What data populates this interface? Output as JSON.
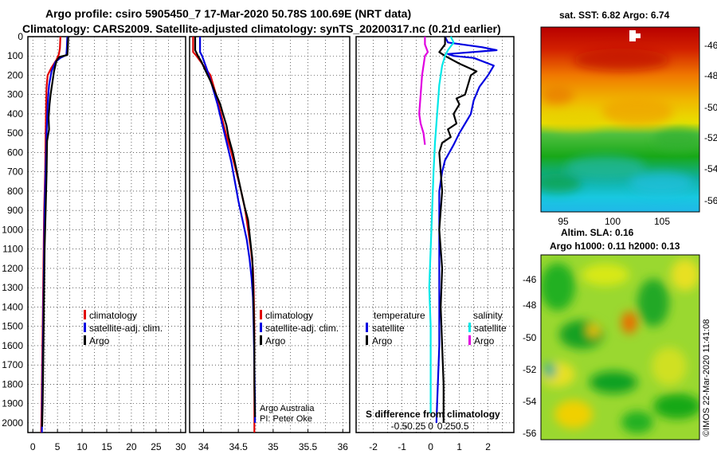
{
  "header": {
    "title_line1": "Argo profile: csiro 5905450_7 17-Mar-2020 50.78S 100.69E (NRT data)",
    "title_line2": "Climatology: CARS2009. Satellite-adjusted climatology: synTS_20200317.nc (0.21d earlier)"
  },
  "colors": {
    "climatology": "#e00000",
    "satellite_adj": "#0000e0",
    "argo": "#000000",
    "satellite_s": "#00e8e8",
    "argo_s": "#e000e0"
  },
  "chart_data": [
    {
      "type": "line",
      "name": "temperature-profile",
      "xlim": [
        -1,
        31
      ],
      "ylim": [
        2050,
        0
      ],
      "xticks": [
        "0",
        "5",
        "10",
        "15",
        "20",
        "25",
        "30"
      ],
      "yticks": [
        "0",
        "100",
        "200",
        "300",
        "400",
        "500",
        "600",
        "700",
        "800",
        "900",
        "1000",
        "1100",
        "1200",
        "1300",
        "1400",
        "1500",
        "1600",
        "1700",
        "1800",
        "1900",
        "2000"
      ],
      "legend": [
        "climatology",
        "satellite-adj. clim.",
        "Argo"
      ],
      "series": [
        {
          "name": "climatology",
          "color": "#e00000",
          "points": [
            [
              5.6,
              0
            ],
            [
              5.5,
              60
            ],
            [
              5.3,
              90
            ],
            [
              4.8,
              120
            ],
            [
              3.8,
              160
            ],
            [
              3.0,
              200
            ],
            [
              2.8,
              260
            ],
            [
              2.7,
              350
            ],
            [
              2.6,
              500
            ],
            [
              2.5,
              700
            ],
            [
              2.3,
              900
            ],
            [
              2.2,
              1100
            ],
            [
              2.1,
              1300
            ],
            [
              2.0,
              1500
            ],
            [
              1.9,
              1700
            ],
            [
              1.8,
              1900
            ],
            [
              1.7,
              2050
            ]
          ]
        },
        {
          "name": "satellite-adj. clim.",
          "color": "#0000e0",
          "points": [
            [
              7.0,
              0
            ],
            [
              6.9,
              60
            ],
            [
              6.8,
              95
            ],
            [
              5.6,
              110
            ],
            [
              4.6,
              130
            ],
            [
              3.8,
              180
            ],
            [
              3.3,
              250
            ],
            [
              3.0,
              350
            ],
            [
              2.8,
              500
            ],
            [
              2.6,
              700
            ],
            [
              2.4,
              900
            ],
            [
              2.3,
              1100
            ],
            [
              2.2,
              1300
            ],
            [
              2.1,
              1500
            ],
            [
              2.0,
              1700
            ],
            [
              1.9,
              1900
            ],
            [
              1.85,
              2050
            ]
          ]
        },
        {
          "name": "Argo",
          "color": "#000000",
          "points": [
            [
              7.2,
              0
            ],
            [
              7.1,
              60
            ],
            [
              7.0,
              95
            ],
            [
              5.4,
              105
            ],
            [
              4.8,
              125
            ],
            [
              4.3,
              180
            ],
            [
              3.9,
              250
            ],
            [
              3.6,
              300
            ],
            [
              3.4,
              350
            ],
            [
              3.2,
              420
            ],
            [
              3.3,
              480
            ],
            [
              2.9,
              540
            ],
            [
              2.8,
              700
            ],
            [
              2.6,
              900
            ],
            [
              2.4,
              1100
            ],
            [
              2.3,
              1300
            ],
            [
              2.2,
              1500
            ],
            [
              2.1,
              1700
            ],
            [
              2.0,
              1900
            ],
            [
              1.9,
              2020
            ]
          ]
        }
      ]
    },
    {
      "type": "line",
      "name": "salinity-profile",
      "xlim": [
        33.8,
        36.1
      ],
      "ylim": [
        2050,
        0
      ],
      "xticks": [
        "34",
        "34.5",
        "35",
        "35.5",
        "36"
      ],
      "legend": [
        "climatology",
        "satellite-adj. clim.",
        "Argo"
      ],
      "annotation": [
        "Argo Australia",
        "PI: Peter Oke"
      ],
      "series": [
        {
          "name": "climatology",
          "color": "#e00000",
          "points": [
            [
              33.85,
              0
            ],
            [
              33.85,
              80
            ],
            [
              33.9,
              100
            ],
            [
              34.0,
              150
            ],
            [
              34.1,
              200
            ],
            [
              34.18,
              300
            ],
            [
              34.25,
              400
            ],
            [
              34.32,
              500
            ],
            [
              34.4,
              600
            ],
            [
              34.47,
              700
            ],
            [
              34.54,
              800
            ],
            [
              34.6,
              900
            ],
            [
              34.64,
              1000
            ],
            [
              34.68,
              1100
            ],
            [
              34.71,
              1200
            ],
            [
              34.72,
              1300
            ],
            [
              34.73,
              1500
            ],
            [
              34.73,
              1800
            ],
            [
              34.73,
              2050
            ]
          ]
        },
        {
          "name": "satellite-adj. clim.",
          "color": "#0000e0",
          "points": [
            [
              33.95,
              0
            ],
            [
              33.95,
              80
            ],
            [
              33.98,
              100
            ],
            [
              34.05,
              170
            ],
            [
              34.12,
              250
            ],
            [
              34.2,
              350
            ],
            [
              34.28,
              470
            ],
            [
              34.34,
              560
            ],
            [
              34.4,
              650
            ],
            [
              34.45,
              750
            ],
            [
              34.5,
              850
            ],
            [
              34.56,
              950
            ],
            [
              34.62,
              1050
            ],
            [
              34.66,
              1150
            ],
            [
              34.69,
              1250
            ],
            [
              34.71,
              1350
            ],
            [
              34.72,
              1500
            ],
            [
              34.73,
              1700
            ],
            [
              34.74,
              1900
            ],
            [
              34.74,
              2000
            ]
          ]
        },
        {
          "name": "Argo",
          "color": "#000000",
          "points": [
            [
              33.88,
              0
            ],
            [
              33.88,
              70
            ],
            [
              33.92,
              100
            ],
            [
              33.97,
              130
            ],
            [
              34.02,
              170
            ],
            [
              34.1,
              230
            ],
            [
              34.18,
              300
            ],
            [
              34.24,
              350
            ],
            [
              34.28,
              400
            ],
            [
              34.33,
              460
            ],
            [
              34.36,
              520
            ],
            [
              34.42,
              600
            ],
            [
              34.48,
              700
            ],
            [
              34.54,
              800
            ],
            [
              34.59,
              880
            ],
            [
              34.64,
              950
            ],
            [
              34.67,
              1050
            ],
            [
              34.7,
              1150
            ],
            [
              34.71,
              1250
            ],
            [
              34.72,
              1400
            ],
            [
              34.73,
              1600
            ],
            [
              34.73,
              1800
            ],
            [
              34.74,
              1970
            ]
          ]
        }
      ]
    },
    {
      "type": "line",
      "name": "difference-from-climatology",
      "xlim": [
        -2.6,
        2.9
      ],
      "ylim": [
        2050,
        0
      ],
      "xticks_temperature": [
        "-2",
        "-1",
        "0",
        "1",
        "2"
      ],
      "xticks_salinity": [
        "-0.5",
        "-0.25",
        "0",
        "0.25",
        "0.5"
      ],
      "xlabel": "S difference from climatology",
      "legend_temperature": [
        "temperature",
        "satellite",
        "Argo"
      ],
      "legend_salinity": [
        "salinity",
        "satellite",
        "Argo"
      ],
      "series": [
        {
          "name": "temperature satellite",
          "color": "#0000e0",
          "points": [
            [
              0.5,
              0
            ],
            [
              0.6,
              30
            ],
            [
              1.8,
              55
            ],
            [
              2.3,
              70
            ],
            [
              0.6,
              90
            ],
            [
              0.8,
              100
            ],
            [
              1.5,
              110
            ],
            [
              2.2,
              150
            ],
            [
              2.0,
              200
            ],
            [
              1.7,
              260
            ],
            [
              1.5,
              330
            ],
            [
              1.4,
              400
            ],
            [
              1.0,
              500
            ],
            [
              0.8,
              560
            ],
            [
              0.5,
              640
            ],
            [
              0.4,
              700
            ],
            [
              0.3,
              800
            ],
            [
              0.3,
              1000
            ],
            [
              0.3,
              1200
            ],
            [
              0.3,
              1400
            ],
            [
              0.3,
              1600
            ],
            [
              0.25,
              1800
            ],
            [
              0.2,
              2000
            ]
          ]
        },
        {
          "name": "temperature Argo",
          "color": "#000000",
          "points": [
            [
              0.5,
              0
            ],
            [
              0.5,
              40
            ],
            [
              0.3,
              80
            ],
            [
              0.5,
              100
            ],
            [
              1.0,
              140
            ],
            [
              1.6,
              180
            ],
            [
              1.4,
              200
            ],
            [
              1.3,
              250
            ],
            [
              1.2,
              300
            ],
            [
              0.9,
              320
            ],
            [
              1.0,
              350
            ],
            [
              0.8,
              400
            ],
            [
              0.9,
              450
            ],
            [
              0.6,
              480
            ],
            [
              0.7,
              520
            ],
            [
              0.4,
              550
            ],
            [
              0.3,
              600
            ],
            [
              0.35,
              700
            ],
            [
              0.4,
              800
            ],
            [
              0.35,
              900
            ],
            [
              0.3,
              1000
            ],
            [
              0.4,
              1200
            ],
            [
              0.35,
              1400
            ],
            [
              0.4,
              1600
            ],
            [
              0.45,
              1800
            ],
            [
              0.45,
              2000
            ]
          ]
        },
        {
          "name": "salinity satellite",
          "color": "#00e8e8",
          "points": [
            [
              0.7,
              0
            ],
            [
              0.8,
              30
            ],
            [
              0.6,
              70
            ],
            [
              0.5,
              100
            ],
            [
              0.4,
              150
            ],
            [
              0.3,
              250
            ],
            [
              0.25,
              350
            ],
            [
              0.2,
              450
            ],
            [
              0.15,
              550
            ],
            [
              0.1,
              700
            ],
            [
              0.05,
              900
            ],
            [
              0.0,
              1100
            ],
            [
              -0.05,
              1300
            ],
            [
              0.0,
              1500
            ],
            [
              0.0,
              1700
            ],
            [
              0.0,
              1950
            ]
          ]
        },
        {
          "name": "salinity Argo",
          "color": "#e000e0",
          "points": [
            [
              -0.2,
              0
            ],
            [
              -0.2,
              40
            ],
            [
              -0.1,
              80
            ],
            [
              -0.2,
              100
            ],
            [
              -0.3,
              200
            ],
            [
              -0.35,
              300
            ],
            [
              -0.4,
              400
            ],
            [
              -0.35,
              450
            ],
            [
              -0.25,
              500
            ],
            [
              -0.2,
              560
            ]
          ]
        }
      ]
    },
    {
      "type": "heatmap",
      "name": "satellite-sst-map",
      "title": "sat. SST: 6.82 Argo: 6.74",
      "xticks": [
        "95",
        "100",
        "105"
      ],
      "yticks": [
        "-46",
        "-48",
        "-50",
        "-52",
        "-54",
        "-56"
      ]
    },
    {
      "type": "heatmap",
      "name": "altimetry-sla-map",
      "title_line1": "Altim. SLA: 0.16",
      "title_line2": "Argo h1000: 0.11 h2000: 0.13",
      "yticks": [
        "-46",
        "-48",
        "-50",
        "-52",
        "-54",
        "-56"
      ]
    }
  ],
  "watermark": "©IMOS 22-Mar-2020 11:41:08"
}
